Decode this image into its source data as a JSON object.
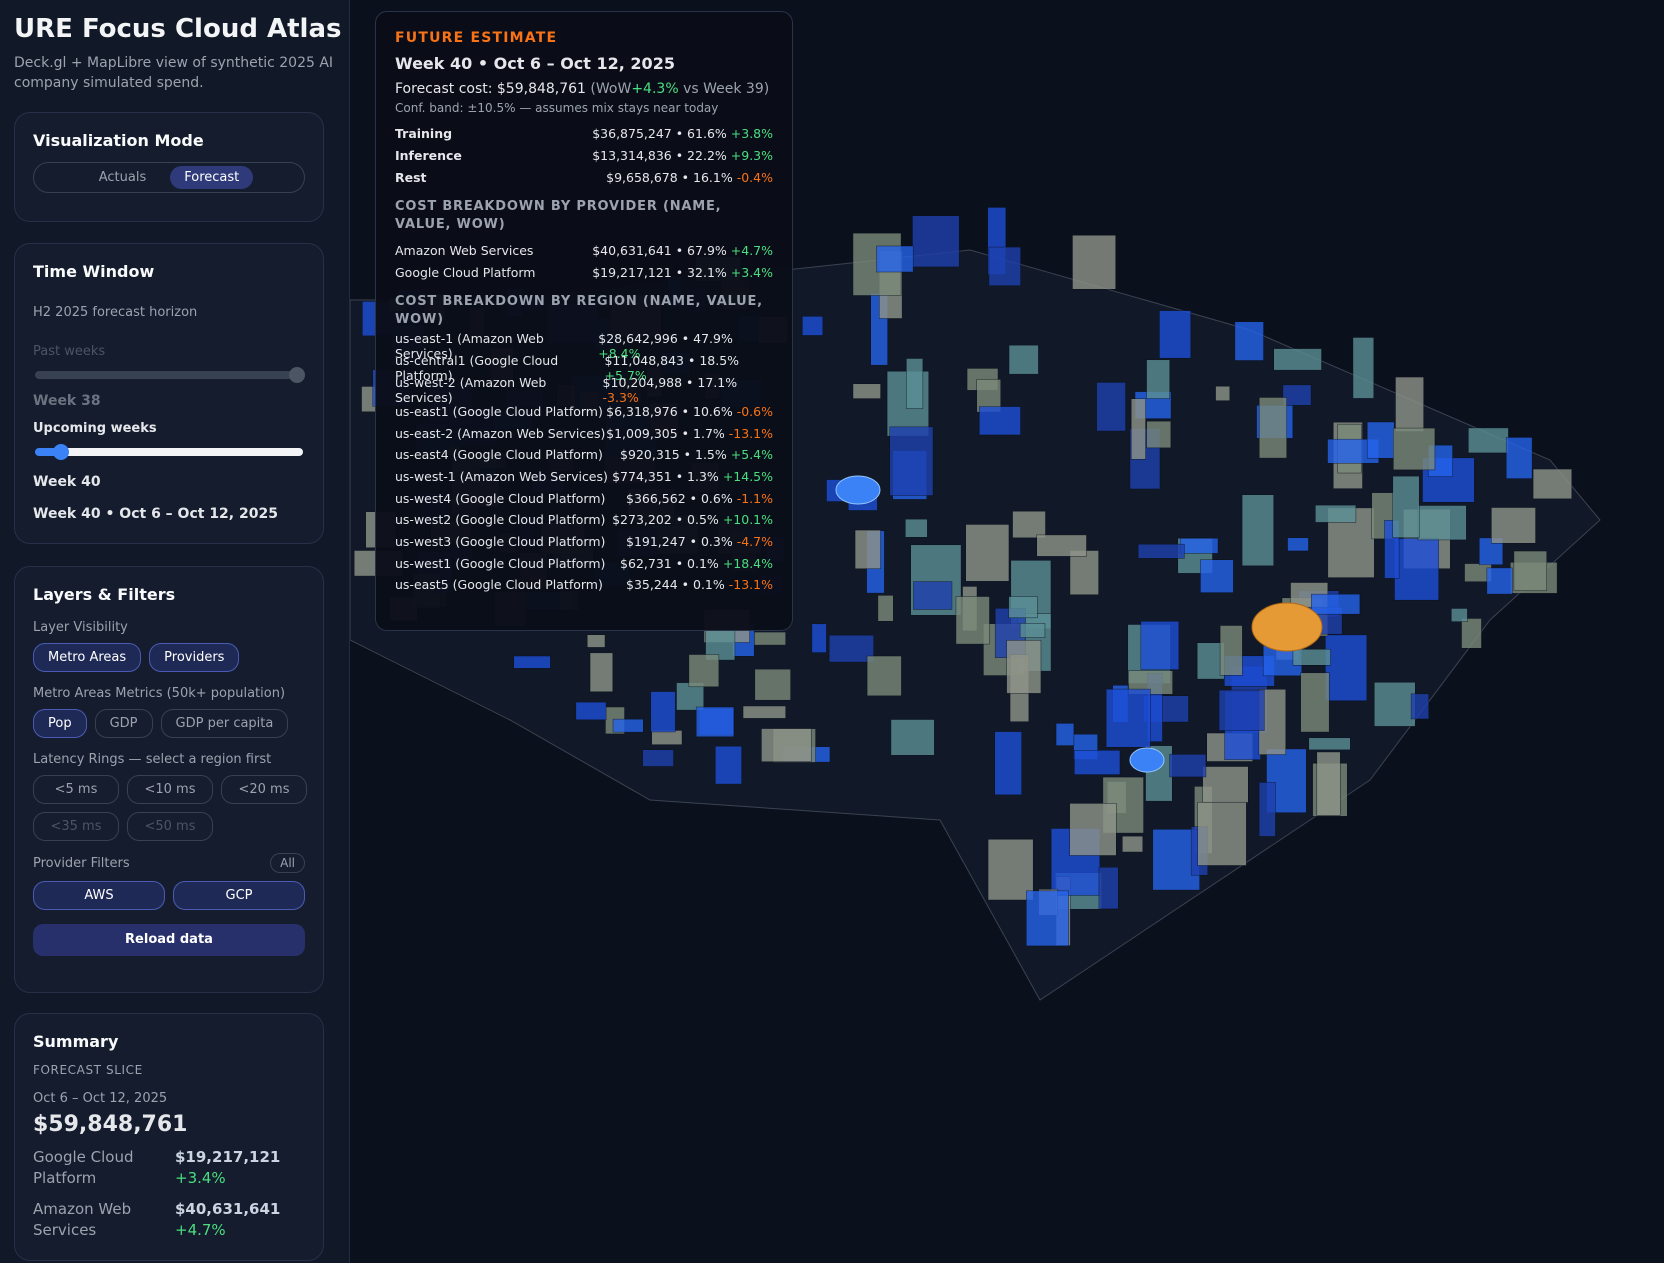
{
  "sidebar": {
    "title": "URE Focus Cloud Atlas",
    "subtitle": "Deck.gl + MapLibre view of synthetic 2025 AI company simulated spend.",
    "mode": {
      "heading": "Visualization Mode",
      "options": [
        "Actuals",
        "Forecast"
      ],
      "active": "Forecast"
    },
    "time_window": {
      "heading": "Time Window",
      "horizon": "H2 2025 forecast horizon",
      "past_label": "Past weeks",
      "past_value": "Week 38",
      "upcoming_label": "Upcoming weeks",
      "upcoming_value": "Week 40",
      "range": "Week 40 • Oct 6 – Oct 12, 2025"
    },
    "layers": {
      "heading": "Layers & Filters",
      "visibility_label": "Layer Visibility",
      "visibility": [
        "Metro Areas",
        "Providers"
      ],
      "metrics_label": "Metro Areas Metrics (50k+ population)",
      "metrics": [
        "Pop",
        "GDP",
        "GDP per capita"
      ],
      "latency_label": "Latency Rings — select a region first",
      "latency": [
        "<5 ms",
        "<10 ms",
        "<20 ms",
        "<35 ms",
        "<50 ms"
      ],
      "provider_label": "Provider Filters",
      "all": "All",
      "providers": [
        "AWS",
        "GCP"
      ],
      "reload": "Reload data"
    },
    "summary": {
      "heading": "Summary",
      "slice": "FORECAST SLICE",
      "dates": "Oct 6 – Oct 12, 2025",
      "total": "$59,848,761",
      "providers": [
        {
          "name": "Google Cloud Platform",
          "value": "$19,217,121",
          "wow": "+3.4%"
        },
        {
          "name": "Amazon Web Services",
          "value": "$40,631,641",
          "wow": "+4.7%"
        }
      ]
    }
  },
  "tooltip": {
    "kicker": "FUTURE ESTIMATE",
    "week": "Week 40 • Oct 6 – Oct 12, 2025",
    "forecast_label": "Forecast cost: $59,848,761",
    "wow_prefix": "(WoW",
    "wow": "+4.3%",
    "wow_suffix": "vs Week 39)",
    "band": "Conf. band: ±10.5% — assumes mix stays near today",
    "mix": [
      {
        "name": "Training",
        "value": "$36,875,247 • 61.6%",
        "wow": "+3.8%"
      },
      {
        "name": "Inference",
        "value": "$13,314,836 • 22.2%",
        "wow": "+9.3%"
      },
      {
        "name": "Rest",
        "value": "$9,658,678 • 16.1%",
        "wow": "-0.4%"
      }
    ],
    "provider_heading": "COST BREAKDOWN BY PROVIDER (NAME, VALUE, WOW)",
    "providers": [
      {
        "name": "Amazon Web Services",
        "value": "$40,631,641 • 67.9%",
        "wow": "+4.7%"
      },
      {
        "name": "Google Cloud Platform",
        "value": "$19,217,121 • 32.1%",
        "wow": "+3.4%"
      }
    ],
    "region_heading": "COST BREAKDOWN BY REGION (NAME, VALUE, WOW)",
    "regions": [
      {
        "name": "us-east-1 (Amazon Web Services)",
        "value": "$28,642,996 • 47.9%",
        "wow": "+8.4%"
      },
      {
        "name": "us-central1 (Google Cloud Platform)",
        "value": "$11,048,843 • 18.5%",
        "wow": "+5.7%"
      },
      {
        "name": "us-west-2 (Amazon Web Services)",
        "value": "$10,204,988 • 17.1%",
        "wow": "-3.3%"
      },
      {
        "name": "us-east1 (Google Cloud Platform)",
        "value": "$6,318,976 • 10.6%",
        "wow": "-0.6%"
      },
      {
        "name": "us-east-2 (Amazon Web Services)",
        "value": "$1,009,305 • 1.7%",
        "wow": "-13.1%"
      },
      {
        "name": "us-east4 (Google Cloud Platform)",
        "value": "$920,315 • 1.5%",
        "wow": "+5.4%"
      },
      {
        "name": "us-west-1 (Amazon Web Services)",
        "value": "$774,351 • 1.3%",
        "wow": "+14.5%"
      },
      {
        "name": "us-west4 (Google Cloud Platform)",
        "value": "$366,562 • 0.6%",
        "wow": "-1.1%"
      },
      {
        "name": "us-west2 (Google Cloud Platform)",
        "value": "$273,202 • 0.5%",
        "wow": "+10.1%"
      },
      {
        "name": "us-west3 (Google Cloud Platform)",
        "value": "$191,247 • 0.3%",
        "wow": "-4.7%"
      },
      {
        "name": "us-west1 (Google Cloud Platform)",
        "value": "$62,731 • 0.1%",
        "wow": "+18.4%"
      },
      {
        "name": "us-east5 (Google Cloud Platform)",
        "value": "$35,244 • 0.1%",
        "wow": "-13.1%"
      }
    ]
  }
}
